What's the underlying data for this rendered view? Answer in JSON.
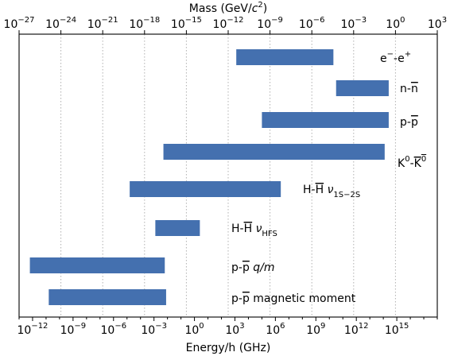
{
  "chart_data": {
    "type": "bar",
    "orientation": "horizontal",
    "scale": "log",
    "xlabel": "Energy/h (GHz)",
    "x2label": "Mass (GeV/c²)",
    "xlim": [
      -13,
      18
    ],
    "x2lim": [
      -27,
      3
    ],
    "grid": "vertical dotted",
    "bottom_ticks": [
      -12,
      -9,
      -6,
      -3,
      0,
      3,
      6,
      9,
      12,
      15
    ],
    "top_ticks": [
      -27,
      -24,
      -21,
      -18,
      -15,
      -12,
      -9,
      -6,
      -3,
      0,
      3
    ],
    "bars": [
      {
        "label": "e⁻-e⁺",
        "start": 3.1,
        "end": 10.3
      },
      {
        "label": "n-n̄",
        "start": 10.5,
        "end": 14.4
      },
      {
        "label": "p-p̄",
        "start": 5.0,
        "end": 14.4
      },
      {
        "label": "K⁰-K̄⁰",
        "start": -2.3,
        "end": 14.1
      },
      {
        "label": "H-H̄ ν1S−2S",
        "start": -4.8,
        "end": 6.4
      },
      {
        "label": "H-H̄ νHFS",
        "start": -2.9,
        "end": 0.4
      },
      {
        "label": "p-p̄ q/m",
        "start": -12.2,
        "end": -2.2
      },
      {
        "label": "p-p̄  magnetic moment",
        "start": -10.8,
        "end": -2.1
      }
    ]
  }
}
